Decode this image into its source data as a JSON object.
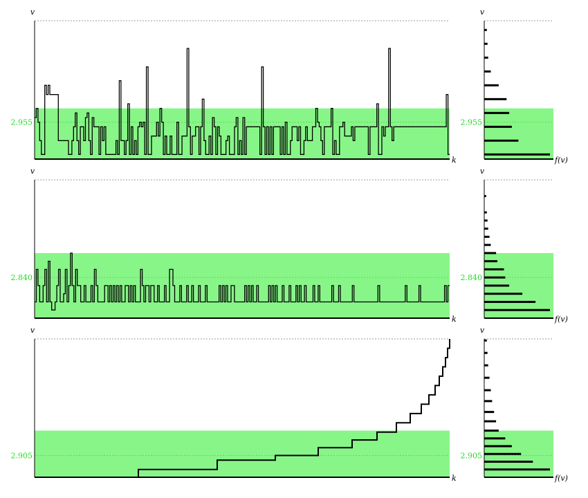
{
  "labels": {
    "v": "v",
    "k": "k",
    "fv": "f(v)"
  },
  "colors": {
    "band": "#88f588",
    "ref_text": "#22dd22",
    "line": "#000000",
    "dotted": "#999999"
  },
  "chart_data": [
    {
      "type": "line",
      "step": true,
      "ref_label": "2.955",
      "ref_value": 2.955,
      "ylim": [
        2.951,
        2.966
      ],
      "band": [
        2.951,
        2.9565
      ],
      "values": [
        2.9555,
        2.9565,
        2.955,
        2.953,
        2.9515,
        2.9515,
        2.959,
        2.958,
        2.959,
        2.958,
        2.958,
        2.958,
        2.958,
        2.958,
        2.953,
        2.953,
        2.953,
        2.953,
        2.953,
        2.953,
        2.9515,
        2.9515,
        2.953,
        2.9545,
        2.956,
        2.953,
        2.9515,
        2.9545,
        2.9545,
        2.953,
        2.9555,
        2.956,
        2.953,
        2.9515,
        2.9555,
        2.9545,
        2.9545,
        2.9545,
        2.9515,
        2.9545,
        2.953,
        2.9545,
        2.9515,
        2.9515,
        2.9515,
        2.9515,
        2.9515,
        2.9515,
        2.953,
        2.9515,
        2.9595,
        2.953,
        2.953,
        2.9515,
        2.953,
        2.957,
        2.9515,
        2.9545,
        2.9515,
        2.953,
        2.9515,
        2.9545,
        2.955,
        2.9545,
        2.955,
        2.9515,
        2.961,
        2.9515,
        2.9515,
        2.9535,
        2.9535,
        2.9535,
        2.955,
        2.9535,
        2.9565,
        2.955,
        2.9515,
        2.9535,
        2.9515,
        2.9515,
        2.9535,
        2.9515,
        2.9515,
        2.9515,
        2.955,
        2.9515,
        2.9515,
        2.9535,
        2.9535,
        2.9535,
        2.963,
        2.9545,
        2.9515,
        2.9535,
        2.9535,
        2.9545,
        2.9545,
        2.9515,
        2.9545,
        2.9575,
        2.953,
        2.9515,
        2.9515,
        2.9535,
        2.9515,
        2.9555,
        2.9545,
        2.9515,
        2.9545,
        2.9535,
        2.9515,
        2.9515,
        2.9515,
        2.953,
        2.9535,
        2.9515,
        2.9515,
        2.9515,
        2.9545,
        2.9555,
        2.9515,
        2.953,
        2.9515,
        2.9555,
        2.9515,
        2.9545,
        2.9545,
        2.9545,
        2.9545,
        2.9545,
        2.9545,
        2.9545,
        2.9545,
        2.9515,
        2.961,
        2.9545,
        2.9515,
        2.9545,
        2.9515,
        2.9545,
        2.9515,
        2.9545,
        2.9545,
        2.9545,
        2.9545,
        2.9515,
        2.9545,
        2.9515,
        2.955,
        2.9515,
        2.9515,
        2.953,
        2.9545,
        2.9545,
        2.9545,
        2.953,
        2.9545,
        2.9515,
        2.9515,
        2.953,
        2.9545,
        2.953,
        2.953,
        2.953,
        2.9545,
        2.9545,
        2.9565,
        2.955,
        2.9545,
        2.953,
        2.9515,
        2.9545,
        2.9545,
        2.9545,
        2.9545,
        2.9565,
        2.9515,
        2.953,
        2.9515,
        2.9515,
        2.9545,
        2.9545,
        2.955,
        2.9535,
        2.9535,
        2.9535,
        2.9535,
        2.9545,
        2.953,
        2.9545,
        2.9545,
        2.9545,
        2.9545,
        2.9545,
        2.9545,
        2.9545,
        2.9545,
        2.9515,
        2.9545,
        2.9545,
        2.9545,
        2.9545,
        2.957,
        2.9515,
        2.9515,
        2.9545,
        2.9535,
        2.9545,
        2.9545,
        2.963,
        2.9545,
        2.953,
        2.9545,
        2.9545,
        2.9545,
        2.9545,
        2.9545,
        2.9545,
        2.9545,
        2.9545,
        2.9545,
        2.9545,
        2.9545,
        2.9545,
        2.9545,
        2.9545,
        2.9545,
        2.9545,
        2.9545,
        2.9545,
        2.9545,
        2.9545,
        2.9545,
        2.9545,
        2.9545,
        2.9545,
        2.9545,
        2.9545,
        2.9545,
        2.9545,
        2.9545,
        2.9545,
        2.9545,
        2.958,
        2.9515
      ],
      "hist": [
        {
          "v": 2.9515,
          "f": 1.0
        },
        {
          "v": 2.953,
          "f": 0.52
        },
        {
          "v": 2.9545,
          "f": 0.42
        },
        {
          "v": 2.956,
          "f": 0.38
        },
        {
          "v": 2.9575,
          "f": 0.34
        },
        {
          "v": 2.959,
          "f": 0.22
        },
        {
          "v": 2.9605,
          "f": 0.1
        },
        {
          "v": 2.962,
          "f": 0.06
        },
        {
          "v": 2.9635,
          "f": 0.05
        },
        {
          "v": 2.965,
          "f": 0.04
        }
      ]
    },
    {
      "type": "line",
      "step": true,
      "ref_label": "2.840",
      "ref_value": 2.84,
      "ylim": [
        2.8375,
        2.846
      ],
      "band": [
        2.8375,
        2.8415
      ],
      "values": [
        2.8385,
        2.8405,
        2.8395,
        2.8385,
        2.8385,
        2.8395,
        2.8405,
        2.8385,
        2.841,
        2.8385,
        2.838,
        2.838,
        2.8385,
        2.8395,
        2.8405,
        2.8385,
        2.8385,
        2.839,
        2.8405,
        2.8385,
        2.8395,
        2.8415,
        2.8395,
        2.8385,
        2.8405,
        2.8395,
        2.8395,
        2.8385,
        2.8385,
        2.8395,
        2.8385,
        2.8385,
        2.8385,
        2.8395,
        2.8385,
        2.8405,
        2.8395,
        2.8385,
        2.8385,
        2.8385,
        2.8385,
        2.8395,
        2.8395,
        2.8385,
        2.8395,
        2.8385,
        2.8395,
        2.8385,
        2.8395,
        2.8385,
        2.8395,
        2.8385,
        2.8385,
        2.8395,
        2.8395,
        2.8385,
        2.8395,
        2.8385,
        2.8395,
        2.8385,
        2.8385,
        2.8385,
        2.8405,
        2.8395,
        2.8385,
        2.8395,
        2.8395,
        2.8385,
        2.8395,
        2.8395,
        2.8385,
        2.8385,
        2.8395,
        2.8385,
        2.8385,
        2.8385,
        2.8395,
        2.8385,
        2.8385,
        2.8405,
        2.8405,
        2.8395,
        2.8385,
        2.8385,
        2.8385,
        2.8395,
        2.8385,
        2.8385,
        2.8385,
        2.8395,
        2.8385,
        2.8385,
        2.8395,
        2.8385,
        2.8385,
        2.8385,
        2.8395,
        2.8385,
        2.8385,
        2.8385,
        2.8395,
        2.8385,
        2.8385,
        2.8385,
        2.8385,
        2.8385,
        2.8385,
        2.8385,
        2.8395,
        2.8385,
        2.8395,
        2.8385,
        2.8395,
        2.8385,
        2.8385,
        2.8395,
        2.8395,
        2.8385,
        2.8385,
        2.8385,
        2.8385,
        2.8385,
        2.8385,
        2.8395,
        2.8385,
        2.8395,
        2.8385,
        2.8395,
        2.8385,
        2.8385,
        2.8395,
        2.8385,
        2.8385,
        2.8385,
        2.8385,
        2.8385,
        2.8385,
        2.8395,
        2.8385,
        2.8395,
        2.8385,
        2.8395,
        2.8385,
        2.8385,
        2.8385,
        2.8395,
        2.8385,
        2.8385,
        2.8385,
        2.8395,
        2.8385,
        2.8385,
        2.8385,
        2.8395,
        2.8385,
        2.8395,
        2.8385,
        2.8385,
        2.8395,
        2.8385,
        2.8385,
        2.8385,
        2.8385,
        2.8395,
        2.8385,
        2.8385,
        2.8395,
        2.8385,
        2.8385,
        2.8385,
        2.8385,
        2.8385,
        2.8385,
        2.8385,
        2.8395,
        2.8385,
        2.8385,
        2.8385,
        2.8395,
        2.8385,
        2.8385,
        2.8385,
        2.8385,
        2.8385,
        2.8385,
        2.8385,
        2.8395,
        2.8385,
        2.8385,
        2.8385,
        2.8385,
        2.8385,
        2.8385,
        2.8385,
        2.8385,
        2.8385,
        2.8385,
        2.8385,
        2.8385,
        2.8385,
        2.8385,
        2.8395,
        2.8385,
        2.8385,
        2.8385,
        2.8385,
        2.8385,
        2.8385,
        2.8385,
        2.8385,
        2.8385,
        2.8385,
        2.8385,
        2.8385,
        2.8385,
        2.8385,
        2.8385,
        2.8395,
        2.8385,
        2.8385,
        2.8385,
        2.8385,
        2.8385,
        2.8385,
        2.8385,
        2.8395,
        2.8385,
        2.8385,
        2.8385,
        2.8385,
        2.8385,
        2.8385,
        2.8385,
        2.8385,
        2.8385,
        2.8385,
        2.8385,
        2.8385,
        2.8385,
        2.8385,
        2.8395,
        2.8385,
        2.8395
      ],
      "hist": [
        {
          "v": 2.838,
          "f": 1.0
        },
        {
          "v": 2.8385,
          "f": 0.78
        },
        {
          "v": 2.839,
          "f": 0.58
        },
        {
          "v": 2.8395,
          "f": 0.38
        },
        {
          "v": 2.84,
          "f": 0.32
        },
        {
          "v": 2.8405,
          "f": 0.3
        },
        {
          "v": 2.841,
          "f": 0.2
        },
        {
          "v": 2.8415,
          "f": 0.18
        },
        {
          "v": 2.842,
          "f": 0.1
        },
        {
          "v": 2.8425,
          "f": 0.08
        },
        {
          "v": 2.843,
          "f": 0.06
        },
        {
          "v": 2.8435,
          "f": 0.05
        },
        {
          "v": 2.844,
          "f": 0.04
        },
        {
          "v": 2.845,
          "f": 0.03
        }
      ]
    },
    {
      "type": "line",
      "step": true,
      "ref_label": "2.905",
      "ref_value": 2.905,
      "ylim": [
        2.9036,
        2.9125
      ],
      "band": [
        2.9036,
        2.9066
      ],
      "x": [
        0,
        150,
        264,
        348,
        410,
        459,
        495,
        523,
        543,
        559,
        570,
        579,
        585,
        590,
        594,
        597,
        600
      ],
      "values": [
        2.9036,
        2.9041,
        2.9047,
        2.905,
        2.9055,
        2.906,
        2.9065,
        2.9071,
        2.9077,
        2.9083,
        2.9089,
        2.9095,
        2.9101,
        2.9107,
        2.9113,
        2.9119,
        2.9125
      ],
      "hist": [
        {
          "v": 2.9041,
          "f": 1.0
        },
        {
          "v": 2.9046,
          "f": 0.74
        },
        {
          "v": 2.9051,
          "f": 0.56
        },
        {
          "v": 2.9056,
          "f": 0.42
        },
        {
          "v": 2.9061,
          "f": 0.32
        },
        {
          "v": 2.9066,
          "f": 0.22
        },
        {
          "v": 2.9072,
          "f": 0.18
        },
        {
          "v": 2.9078,
          "f": 0.15
        },
        {
          "v": 2.9085,
          "f": 0.12
        },
        {
          "v": 2.9092,
          "f": 0.1
        },
        {
          "v": 2.91,
          "f": 0.08
        },
        {
          "v": 2.9108,
          "f": 0.06
        },
        {
          "v": 2.9116,
          "f": 0.05
        },
        {
          "v": 2.9124,
          "f": 0.04
        }
      ]
    }
  ]
}
